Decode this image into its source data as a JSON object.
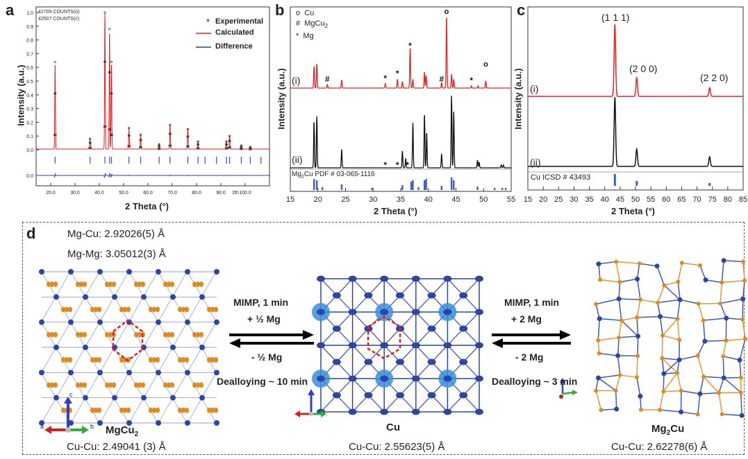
{
  "panels": {
    "a": "a",
    "b": "b",
    "c": "c",
    "d": "d"
  },
  "panel_a": {
    "counts_obs": "42709 COUNTS(o)",
    "counts_calc": "42507 COUNTS(c)",
    "legend": [
      "Experimental",
      "Calculated",
      "Difference"
    ],
    "ylabel": "Intensity (a.u.)",
    "xlabel": "2 Theta (°)",
    "yticks": [
      "1.0",
      "0.9",
      "0.8",
      "0.7",
      "0.6",
      "0.5",
      "0.4",
      "0.3",
      "0.2",
      "0.1",
      "0.0"
    ],
    "diff_tick": "0.0",
    "xticks": [
      "20.0",
      "30.0",
      "40.0",
      "50.0",
      "60.0",
      "70.0",
      "80.0",
      "90.0",
      "100.0"
    ],
    "xunit": "2th",
    "colors": {
      "calc": "#e02020",
      "diff": "#2b3fb0",
      "exp": "#222222",
      "ticks": "#3050c8"
    }
  },
  "panel_b": {
    "legend": [
      {
        "symbol": "o",
        "label": "Cu"
      },
      {
        "symbol": "#",
        "label": "MgCu",
        "sub": "2"
      },
      {
        "symbol": "*",
        "label": "Mg"
      }
    ],
    "trace_i": "(i)",
    "trace_ii": "(ii)",
    "ref_label_pre": "Mg",
    "ref_label_sub": "2",
    "ref_label_post": "Cu PDF # 03-065-1116",
    "ylabel": "Intensity (a.u.)",
    "xlabel": "2 Theta (°)",
    "xticks": [
      "15",
      "20",
      "25",
      "30",
      "35",
      "40",
      "45",
      "50",
      "55"
    ]
  },
  "panel_c": {
    "peaks": [
      "(1 1 1)",
      "(2 0 0)",
      "(2 2 0)"
    ],
    "trace_i": "(i)",
    "trace_ii": "(ii)",
    "ref_label": "Cu ICSD # 43493",
    "ylabel": "Intensity (a.u.)",
    "xlabel": "2 Theta (°)",
    "xticks": [
      "15",
      "20",
      "25",
      "30",
      "35",
      "40",
      "45",
      "50",
      "55",
      "60",
      "65",
      "70",
      "75",
      "80",
      "85"
    ]
  },
  "panel_d": {
    "mgcu2_bond1": "Mg-Cu: 2.92026(5) Å",
    "mgcu2_bond2": "Mg-Mg: 3.05012(3) Å",
    "arrow_left_top1": "MIMP, 1 min",
    "arrow_left_top2": "+ ½ Mg",
    "arrow_left_bottom1": "- ½ Mg",
    "arrow_left_bottom2": "Dealloying ~ 10 min",
    "arrow_right_top1": "MIMP, 1 min",
    "arrow_right_top2": "+ 2 Mg",
    "arrow_right_bottom1": "- 2 Mg",
    "arrow_right_bottom2": "Dealloying ~ 3 min",
    "name_mgcu2": "MgCu",
    "name_mgcu2_sub": "2",
    "name_cu": "Cu",
    "name_mg2cu_pre": "Mg",
    "name_mg2cu_sub": "2",
    "name_mg2cu_post": "Cu",
    "cucu_left": "Cu-Cu: 2.49041 (3) Å",
    "cucu_mid": "Cu-Cu: 2.55623(5) Å",
    "cucu_right": "Cu-Cu: 2.62278(6)  Å",
    "axis_a": "a",
    "axis_b": "b",
    "axis_c": "c",
    "colors": {
      "cu": "#2c45a8",
      "mg": "#e08a20",
      "cu_light": "#3a8fd8",
      "dash": "#e02020"
    }
  }
}
